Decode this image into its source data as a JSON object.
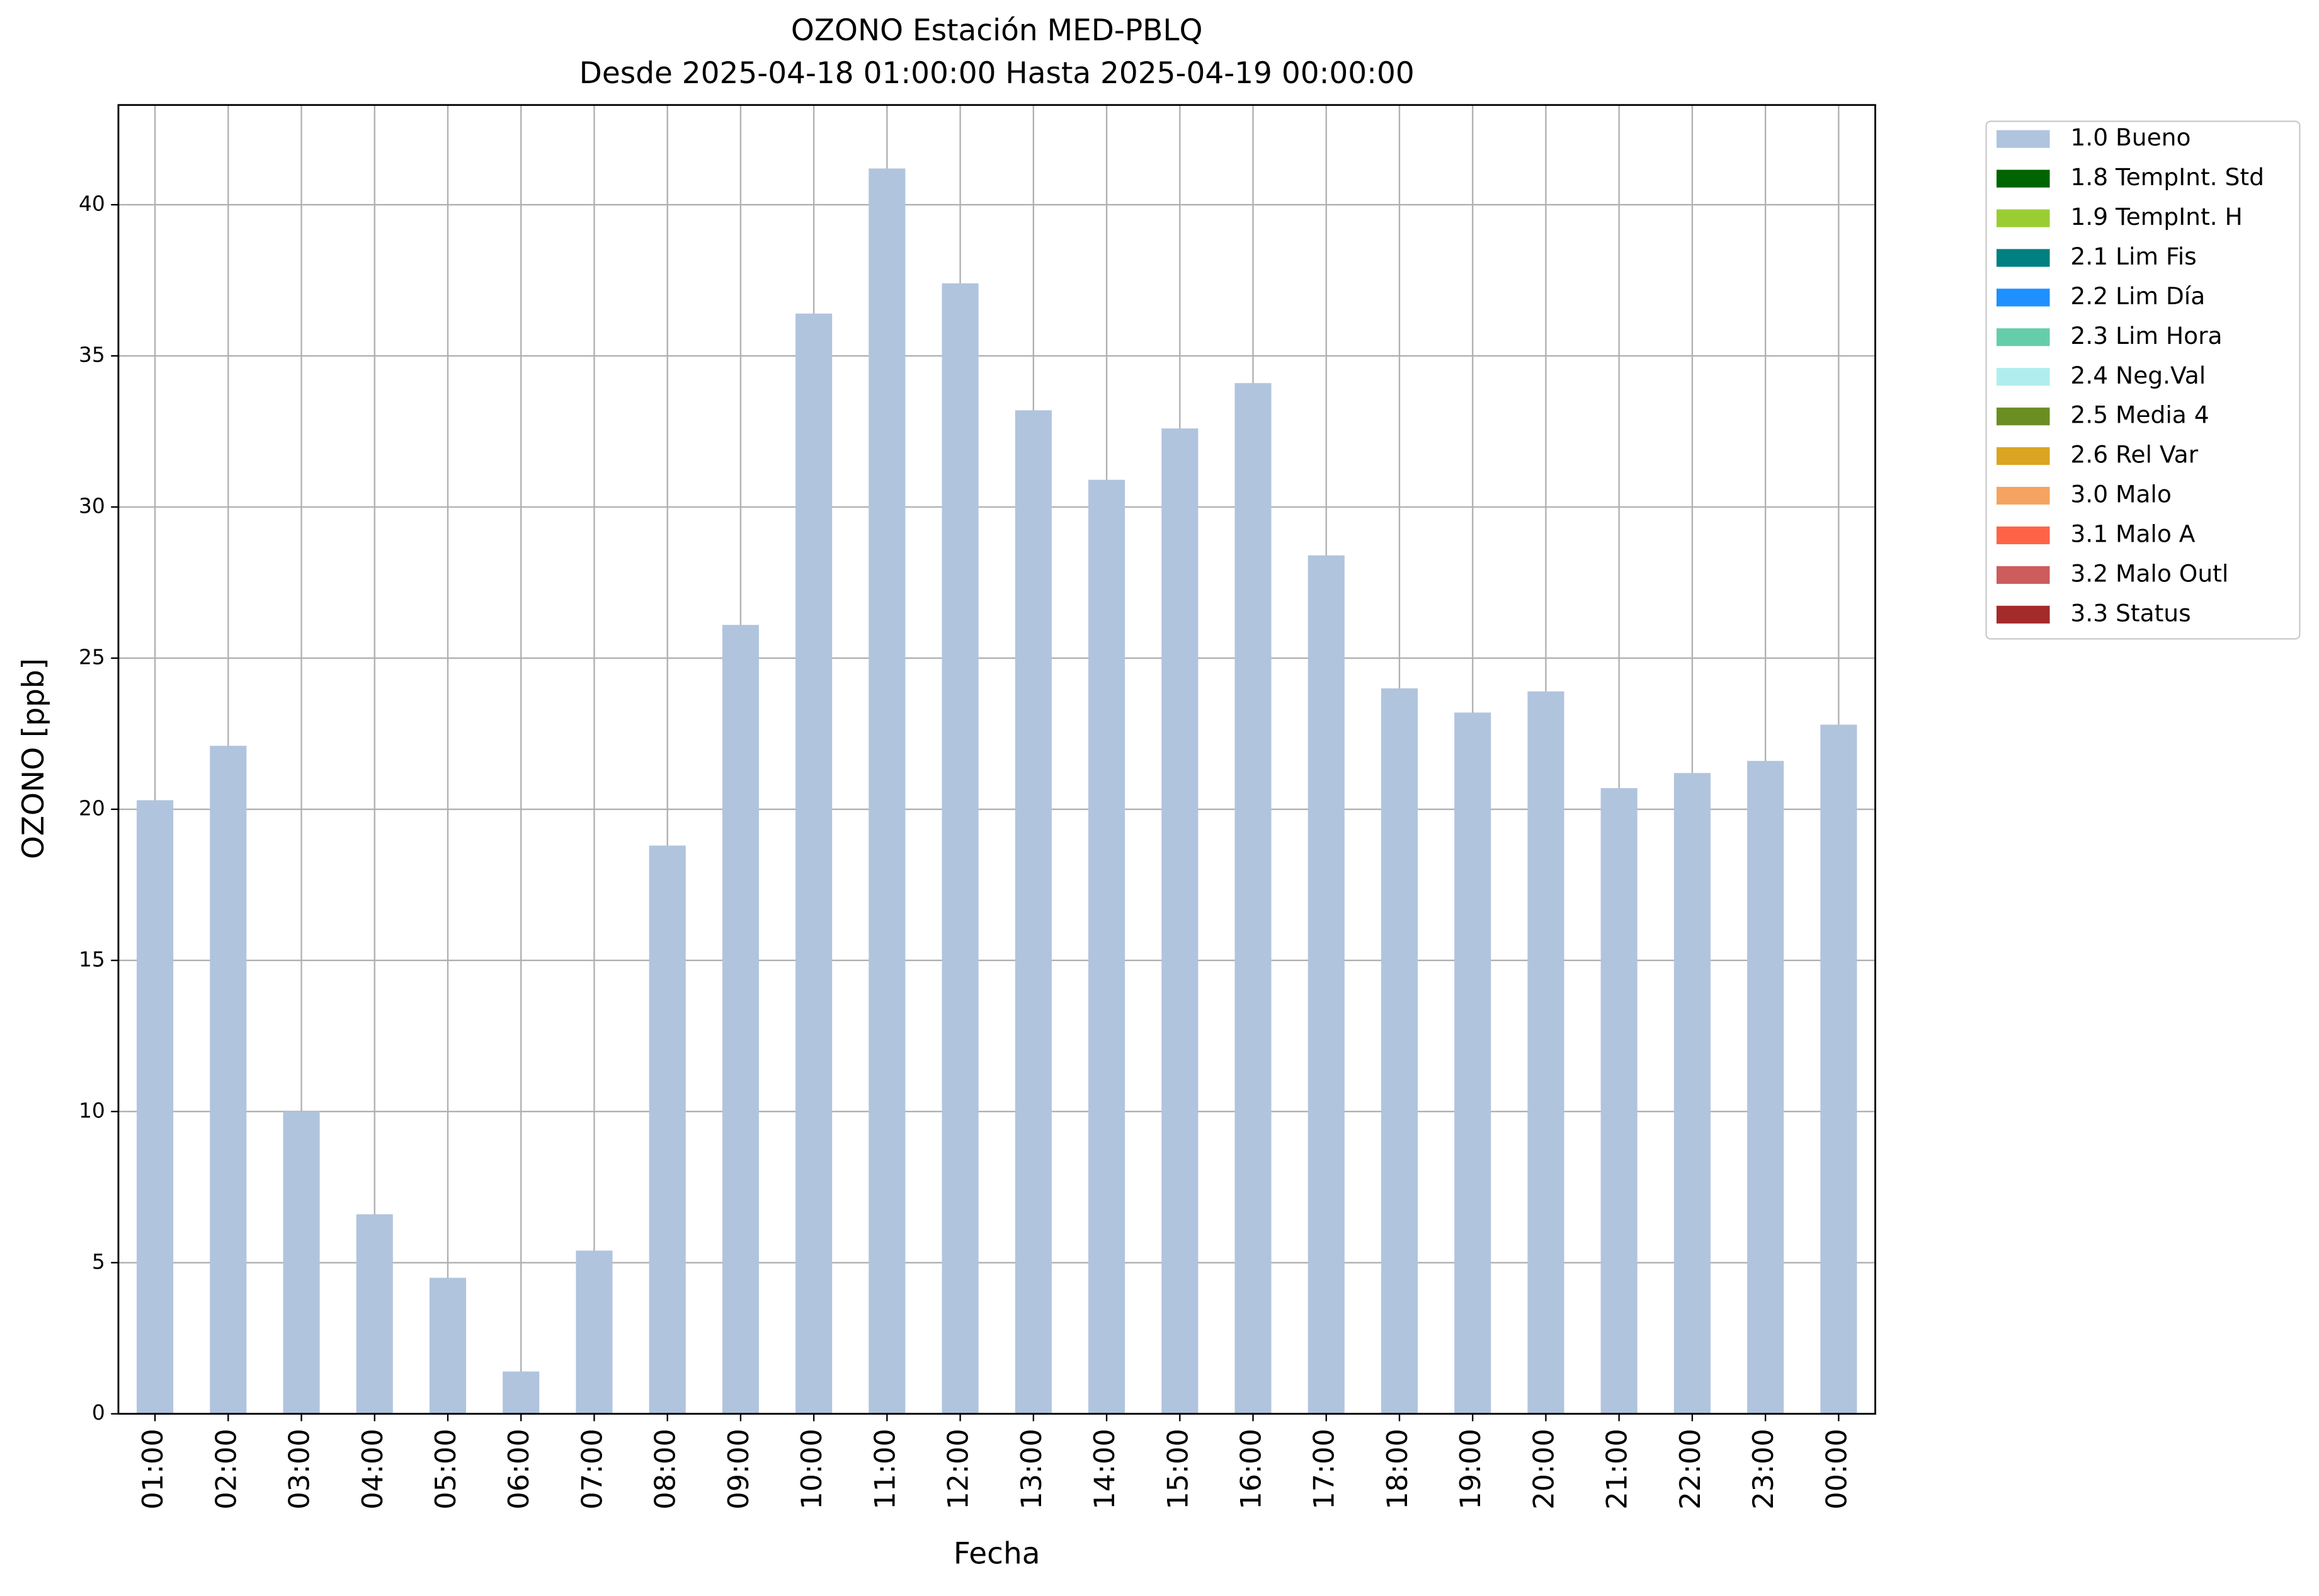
{
  "chart_data": {
    "type": "bar",
    "title": "OZONO Estación MED-PBLQ",
    "subtitle": "Desde 2025-04-18 01:00:00 Hasta 2025-04-19 00:00:00",
    "x_label": "Fecha",
    "y_label": "OZONO [ppb]",
    "categories": [
      "01:00",
      "02:00",
      "03:00",
      "04:00",
      "05:00",
      "06:00",
      "07:00",
      "08:00",
      "09:00",
      "10:00",
      "11:00",
      "12:00",
      "13:00",
      "14:00",
      "15:00",
      "16:00",
      "17:00",
      "18:00",
      "19:00",
      "20:00",
      "21:00",
      "22:00",
      "23:00",
      "00:00"
    ],
    "series": [
      {
        "name": "1.0 Bueno",
        "color": "#b0c4de",
        "values": [
          20.3,
          22.1,
          10.0,
          6.6,
          4.5,
          1.4,
          5.4,
          18.8,
          26.1,
          36.4,
          41.2,
          37.4,
          33.2,
          30.9,
          32.6,
          34.1,
          28.4,
          24.0,
          23.2,
          23.9,
          20.7,
          21.2,
          21.6,
          22.8
        ]
      }
    ],
    "legend": [
      {
        "name": "1.0 Bueno",
        "color": "#b0c4de"
      },
      {
        "name": "1.8 TempInt. Std",
        "color": "#006400"
      },
      {
        "name": "1.9 TempInt. H",
        "color": "#9acd32"
      },
      {
        "name": "2.1 Lim Fis",
        "color": "#008080"
      },
      {
        "name": "2.2 Lim Día",
        "color": "#1e90ff"
      },
      {
        "name": "2.3 Lim Hora",
        "color": "#66cdaa"
      },
      {
        "name": "2.4 Neg.Val",
        "color": "#afeeee"
      },
      {
        "name": "2.5 Media 4",
        "color": "#6b8e23"
      },
      {
        "name": "2.6 Rel Var",
        "color": "#daa520"
      },
      {
        "name": "3.0 Malo",
        "color": "#f4a460"
      },
      {
        "name": "3.1 Malo A",
        "color": "#ff6347"
      },
      {
        "name": "3.2 Malo Outl",
        "color": "#cd5c5c"
      },
      {
        "name": "3.3 Status",
        "color": "#a52a2a"
      }
    ],
    "ylim": [
      0,
      43.3
    ],
    "yticks": [
      0,
      5,
      10,
      15,
      20,
      25,
      30,
      35,
      40
    ],
    "grid": true,
    "legend_position": "outside-upper-right"
  }
}
